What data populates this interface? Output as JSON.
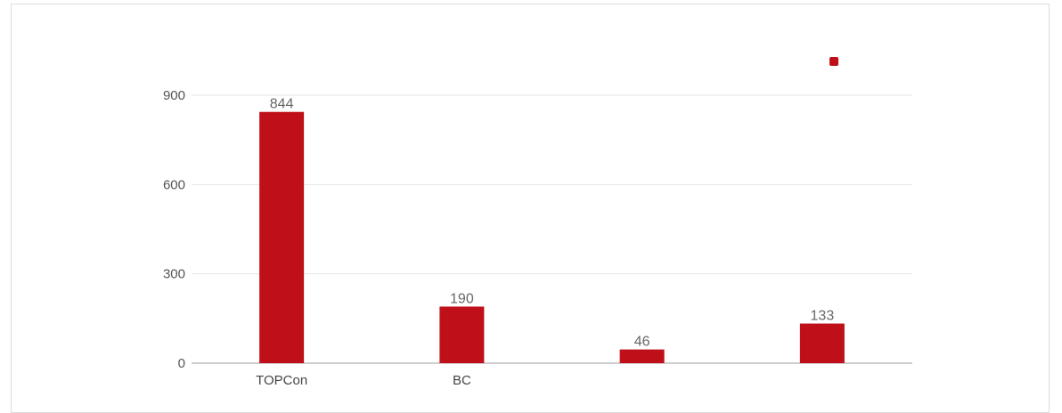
{
  "chart_data": {
    "type": "bar",
    "categories": [
      "TOPCon",
      "BC",
      "",
      ""
    ],
    "values": [
      844,
      190,
      46,
      133
    ],
    "title": "",
    "xlabel": "",
    "ylabel": "",
    "ylim": [
      0,
      900
    ],
    "yticks": [
      0,
      300,
      600,
      900
    ],
    "grid": true,
    "legend": {
      "placement": "top-right",
      "entries": [
        ""
      ]
    },
    "colors": {
      "bar": "#bf1019",
      "grid": "#e6e6e6",
      "axis": "#cfcfcf"
    }
  }
}
